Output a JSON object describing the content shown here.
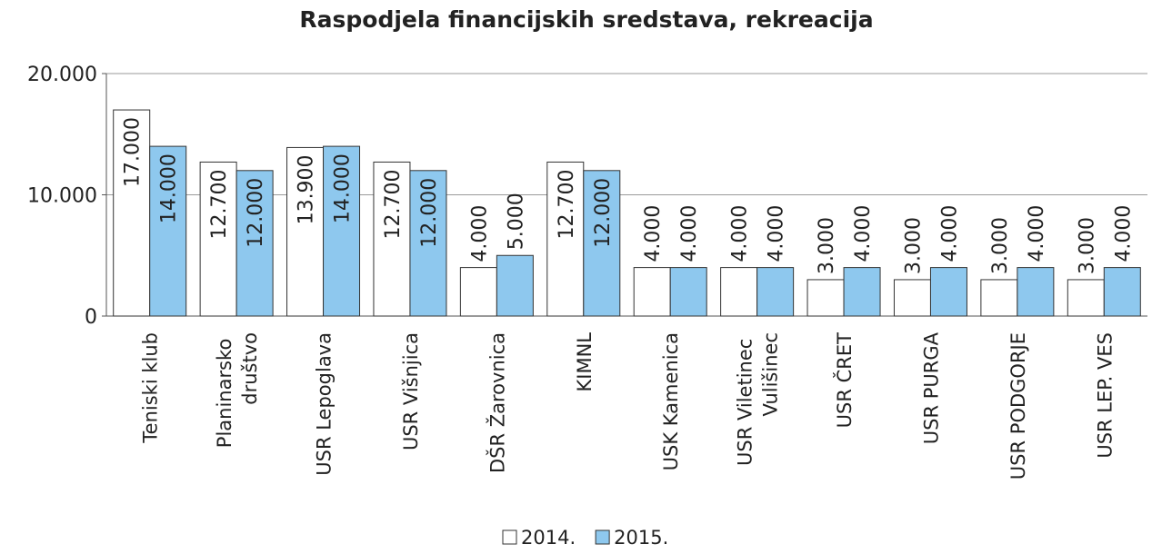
{
  "chart_data": {
    "type": "bar",
    "title": "Raspodjela financijskih sredstava, rekreacija",
    "categories": [
      "Teniski klub",
      "Planinarsko društvo",
      "USR Lepoglava",
      "USR Višnjica",
      "DŠR Žarovnica",
      "KIMNL",
      "USK Kamenica",
      "USR Viletinec Vulišinec",
      "USR ČRET",
      "USR PURGA",
      "USR PODGORJE",
      "USR LEP. VES"
    ],
    "series": [
      {
        "name": "2014.",
        "color": "#ffffff",
        "values": [
          17000,
          12700,
          13900,
          12700,
          4000,
          12700,
          4000,
          4000,
          3000,
          3000,
          3000,
          3000
        ],
        "value_labels": [
          "17.000",
          "12.700",
          "13.900",
          "12.700",
          "4.000",
          "12.700",
          "4.000",
          "4.000",
          "3.000",
          "3.000",
          "3.000",
          "3.000"
        ]
      },
      {
        "name": "2015.",
        "color": "#8ec8ee",
        "values": [
          14000,
          12000,
          14000,
          12000,
          5000,
          12000,
          4000,
          4000,
          4000,
          4000,
          4000,
          4000
        ],
        "value_labels": [
          "14.000",
          "12.000",
          "14.000",
          "12.000",
          "5.000",
          "12.000",
          "4.000",
          "4.000",
          "4.000",
          "4.000",
          "4.000",
          "4.000"
        ]
      }
    ],
    "ylim": [
      0,
      20000
    ],
    "yticks": [
      0,
      {
        "value": 10000,
        "label": "10.000"
      },
      {
        "value": 20000,
        "label": "20.000"
      }
    ],
    "grid": true,
    "legend": "bottom"
  }
}
